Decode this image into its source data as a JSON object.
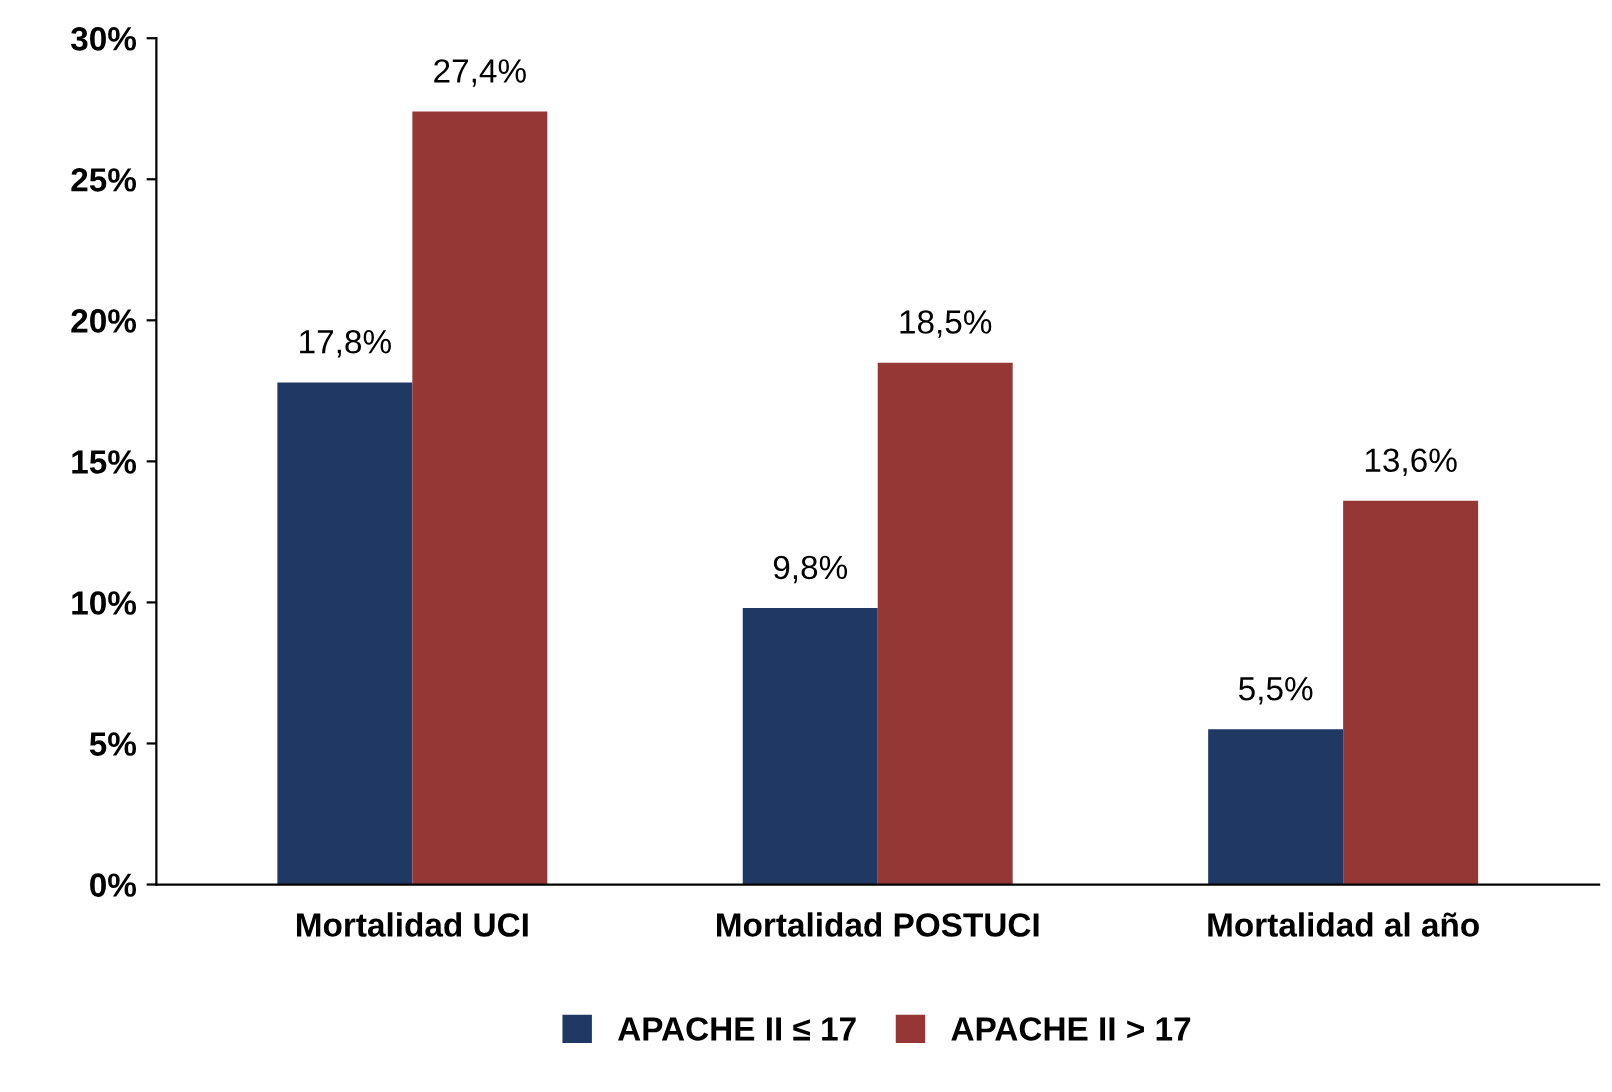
{
  "chart_data": {
    "type": "bar",
    "categories": [
      "Mortalidad UCI",
      "Mortalidad POSTUCI",
      "Mortalidad al año"
    ],
    "series": [
      {
        "name": "APACHE II ≤ 17",
        "color": "#1f3864",
        "values": [
          17.8,
          9.8,
          5.5
        ],
        "value_labels": [
          "17,8%",
          "9,8%",
          "5,5%"
        ]
      },
      {
        "name": "APACHE II > 17",
        "color": "#953735",
        "values": [
          27.4,
          18.5,
          13.6
        ],
        "value_labels": [
          "27,4%",
          "18,5%",
          "13,6%"
        ]
      }
    ],
    "ylim": [
      0,
      30
    ],
    "yticks": [
      {
        "value": 0,
        "label": "0%"
      },
      {
        "value": 5,
        "label": "5%"
      },
      {
        "value": 10,
        "label": "10%"
      },
      {
        "value": 15,
        "label": "15%"
      },
      {
        "value": 20,
        "label": "20%"
      },
      {
        "value": 25,
        "label": "25%"
      },
      {
        "value": 30,
        "label": "30%"
      }
    ],
    "grid": false,
    "legend": "bottom"
  }
}
